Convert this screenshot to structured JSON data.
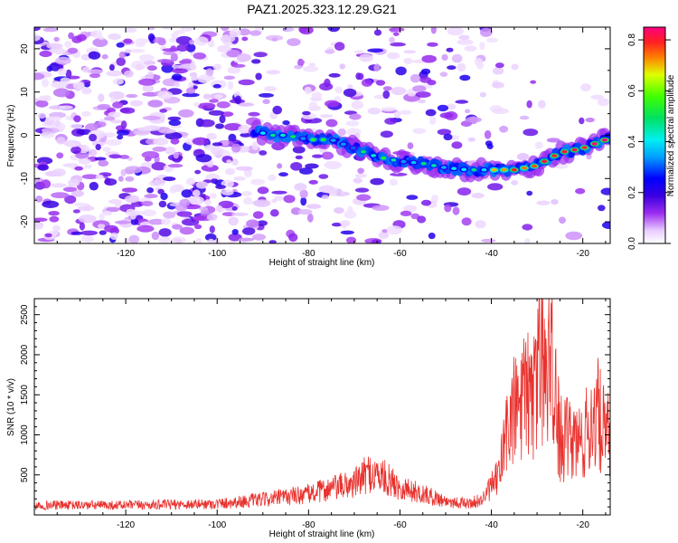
{
  "title": "PAZ1.2025.323.12.29.G21",
  "chart_data": [
    {
      "type": "heatmap",
      "xlabel": "Height of straight line (km)",
      "ylabel": "Frequency (Hz)",
      "xlim": [
        -140,
        -14
      ],
      "ylim": [
        -25,
        25
      ],
      "xticks": [
        -120,
        -100,
        -80,
        -60,
        -40,
        -20
      ],
      "yticks": [
        -20,
        -10,
        0,
        10,
        20
      ],
      "colorbar": {
        "label": "Normalized spectral amplitude",
        "range": [
          0,
          0.85
        ],
        "ticks": [
          0.0,
          0.2,
          0.4,
          0.6,
          0.8
        ],
        "tick_labels": [
          "0.0",
          "0.2",
          "0.4",
          "0.6",
          "0.8"
        ]
      },
      "ridge": [
        {
          "x": -92,
          "y": 1
        },
        {
          "x": -88,
          "y": 0
        },
        {
          "x": -85,
          "y": 0
        },
        {
          "x": -80,
          "y": -1
        },
        {
          "x": -75,
          "y": -1
        },
        {
          "x": -70,
          "y": -3
        },
        {
          "x": -65,
          "y": -5
        },
        {
          "x": -60,
          "y": -6
        },
        {
          "x": -55,
          "y": -6.5
        },
        {
          "x": -50,
          "y": -7.5
        },
        {
          "x": -45,
          "y": -8
        },
        {
          "x": -40,
          "y": -8
        },
        {
          "x": -35,
          "y": -8
        },
        {
          "x": -30,
          "y": -7
        },
        {
          "x": -25,
          "y": -4
        },
        {
          "x": -20,
          "y": -3
        },
        {
          "x": -15,
          "y": -1
        }
      ]
    },
    {
      "type": "line",
      "xlabel": "Height of straight line (km)",
      "ylabel": "SNR (10 * v/v)",
      "xlim": [
        -140,
        -14
      ],
      "ylim": [
        0,
        2700
      ],
      "xticks": [
        -120,
        -100,
        -80,
        -60,
        -40,
        -20
      ],
      "yticks": [
        500,
        1000,
        1500,
        2000,
        2500
      ],
      "color": "#e8322e",
      "envelope": [
        {
          "x": -140,
          "y": 140
        },
        {
          "x": -120,
          "y": 140
        },
        {
          "x": -100,
          "y": 160
        },
        {
          "x": -90,
          "y": 220
        },
        {
          "x": -80,
          "y": 300
        },
        {
          "x": -75,
          "y": 380
        },
        {
          "x": -70,
          "y": 450
        },
        {
          "x": -67,
          "y": 600
        },
        {
          "x": -64,
          "y": 560
        },
        {
          "x": -60,
          "y": 400
        },
        {
          "x": -55,
          "y": 300
        },
        {
          "x": -50,
          "y": 200
        },
        {
          "x": -45,
          "y": 160
        },
        {
          "x": -42,
          "y": 220
        },
        {
          "x": -38,
          "y": 600
        },
        {
          "x": -36,
          "y": 1100
        },
        {
          "x": -34,
          "y": 1250
        },
        {
          "x": -31,
          "y": 1400
        },
        {
          "x": -29,
          "y": 1900
        },
        {
          "x": -27,
          "y": 1900
        },
        {
          "x": -25,
          "y": 900
        },
        {
          "x": -23,
          "y": 850
        },
        {
          "x": -20,
          "y": 850
        },
        {
          "x": -17,
          "y": 1200
        },
        {
          "x": -15,
          "y": 900
        },
        {
          "x": -14,
          "y": 900
        }
      ]
    }
  ]
}
